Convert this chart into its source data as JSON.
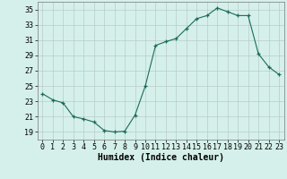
{
  "x": [
    0,
    1,
    2,
    3,
    4,
    5,
    6,
    7,
    8,
    9,
    10,
    11,
    12,
    13,
    14,
    15,
    16,
    17,
    18,
    19,
    20,
    21,
    22,
    23
  ],
  "y": [
    24.0,
    23.2,
    22.8,
    21.0,
    20.7,
    20.3,
    19.2,
    19.0,
    19.1,
    21.2,
    25.0,
    30.3,
    30.8,
    31.2,
    32.5,
    33.8,
    34.2,
    35.2,
    34.7,
    34.2,
    34.2,
    29.2,
    27.5,
    26.5
  ],
  "bg_color": "#d5f0ea",
  "line_color": "#1a6b5a",
  "marker_color": "#1a6b5a",
  "grid_color": "#b8ccc8",
  "xlabel": "Humidex (Indice chaleur)",
  "xlim": [
    -0.5,
    23.5
  ],
  "ylim": [
    18,
    36
  ],
  "yticks": [
    19,
    21,
    23,
    25,
    27,
    29,
    31,
    33,
    35
  ],
  "xticks": [
    0,
    1,
    2,
    3,
    4,
    5,
    6,
    7,
    8,
    9,
    10,
    11,
    12,
    13,
    14,
    15,
    16,
    17,
    18,
    19,
    20,
    21,
    22,
    23
  ],
  "axis_fontsize": 6.5,
  "tick_fontsize": 6,
  "xlabel_fontsize": 7
}
